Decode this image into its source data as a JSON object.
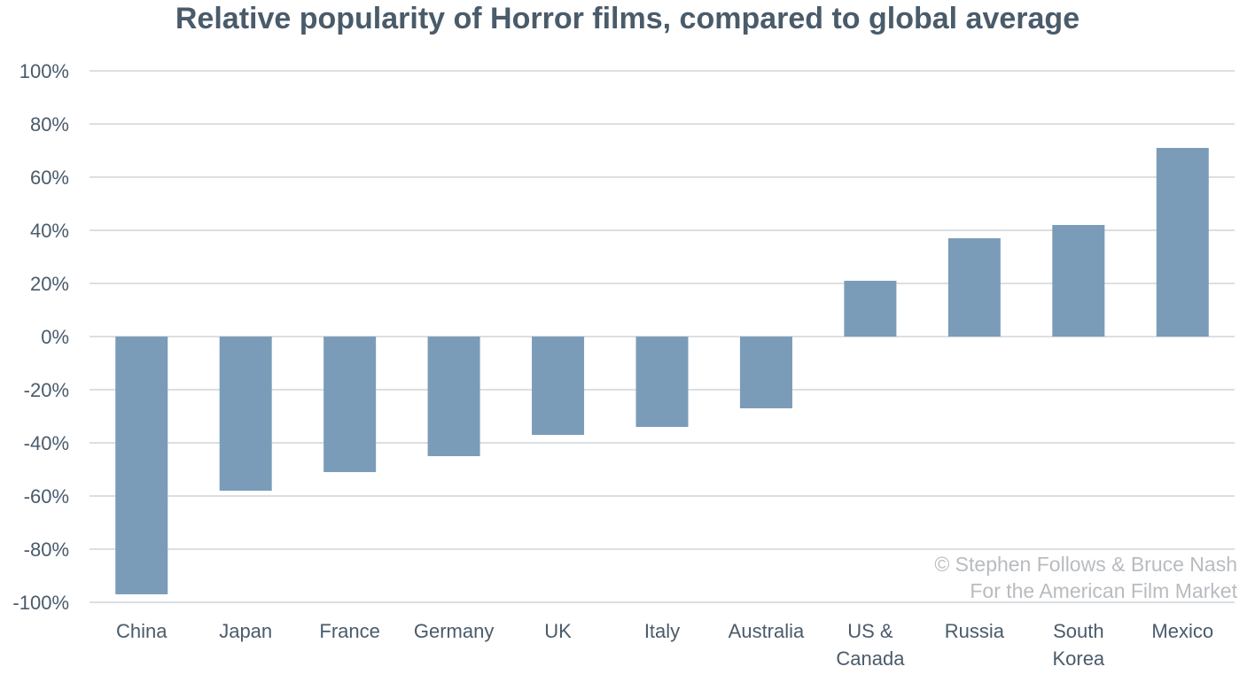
{
  "chart_data": {
    "type": "bar",
    "title": "Relative popularity of Horror films, compared to global average",
    "categories": [
      "China",
      "Japan",
      "France",
      "Germany",
      "UK",
      "Italy",
      "Australia",
      "US & Canada",
      "Russia",
      "South Korea",
      "Mexico"
    ],
    "category_lines": [
      [
        "China"
      ],
      [
        "Japan"
      ],
      [
        "France"
      ],
      [
        "Germany"
      ],
      [
        "UK"
      ],
      [
        "Italy"
      ],
      [
        "Australia"
      ],
      [
        "US &",
        "Canada"
      ],
      [
        "Russia"
      ],
      [
        "South",
        "Korea"
      ],
      [
        "Mexico"
      ]
    ],
    "values": [
      -97,
      -58,
      -51,
      -45,
      -37,
      -34,
      -27,
      21,
      37,
      42,
      71
    ],
    "xlabel": "",
    "ylabel": "",
    "ylim": [
      -100,
      100
    ],
    "yticks": [
      100,
      80,
      60,
      40,
      20,
      0,
      -20,
      -40,
      -60,
      -80,
      -100
    ],
    "ytick_labels": [
      "100%",
      "80%",
      "60%",
      "40%",
      "20%",
      "0%",
      "-20%",
      "-40%",
      "-60%",
      "-80%",
      "-100%"
    ],
    "grid": true,
    "legend": "none",
    "colors": {
      "bar": "#7a9cb8",
      "grid": "#dcdfe2",
      "text": "#4a5b6a",
      "title": "#4a5b6a",
      "credit": "#b8bcc0"
    }
  },
  "credit": {
    "line1": "© Stephen Follows & Bruce Nash",
    "line2": "For the American Film Market"
  }
}
